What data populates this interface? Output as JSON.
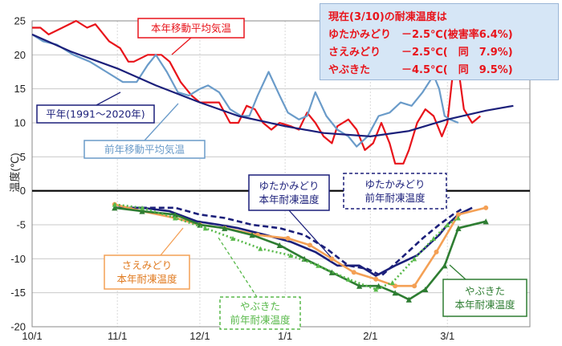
{
  "chart_data": {
    "type": "line",
    "title": "",
    "ylabel": "温度(℃)",
    "ylim": [
      -20,
      25
    ],
    "yticks": [
      -20,
      -15,
      -10,
      -5,
      0,
      5,
      10,
      15,
      20,
      25
    ],
    "xticks": [
      "10/1",
      "11/1",
      "12/1",
      "1/1",
      "2/1",
      "3/1"
    ],
    "x_date_range": [
      "10/1",
      "3/31"
    ],
    "grid": true,
    "series": [
      {
        "name": "本年移動平均気温",
        "color": "#e8141b",
        "style": "solid",
        "points": [
          [
            "10/1",
            24
          ],
          [
            "10/4",
            24
          ],
          [
            "10/7",
            23
          ],
          [
            "10/12",
            24
          ],
          [
            "10/17",
            25
          ],
          [
            "10/21",
            24
          ],
          [
            "10/24",
            24.5
          ],
          [
            "10/27",
            23
          ],
          [
            "10/29",
            22
          ],
          [
            "11/2",
            21
          ],
          [
            "11/5",
            19
          ],
          [
            "11/7",
            19
          ],
          [
            "11/12",
            20
          ],
          [
            "11/17",
            20
          ],
          [
            "11/20",
            19
          ],
          [
            "11/24",
            16
          ],
          [
            "11/28",
            14
          ],
          [
            "12/1",
            13
          ],
          [
            "12/5",
            13
          ],
          [
            "12/8",
            13
          ],
          [
            "12/12",
            10
          ],
          [
            "12/15",
            10
          ],
          [
            "12/18",
            12.5
          ],
          [
            "12/21",
            12
          ],
          [
            "12/24",
            10
          ],
          [
            "12/27",
            9
          ],
          [
            "12/30",
            10
          ],
          [
            "1/3",
            9.5
          ],
          [
            "1/6",
            9
          ],
          [
            "1/9",
            11.5
          ],
          [
            "1/12",
            10
          ],
          [
            "1/15",
            8
          ],
          [
            "1/18",
            7
          ],
          [
            "1/20",
            9.5
          ],
          [
            "1/24",
            10.5
          ],
          [
            "1/27",
            9
          ],
          [
            "1/30",
            6
          ],
          [
            "2/2",
            7
          ],
          [
            "2/5",
            10
          ],
          [
            "2/8",
            7
          ],
          [
            "2/10",
            4
          ],
          [
            "2/13",
            4
          ],
          [
            "2/15",
            6
          ],
          [
            "2/18",
            10
          ],
          [
            "2/21",
            12
          ],
          [
            "2/24",
            11
          ],
          [
            "2/27",
            8
          ],
          [
            "3/1",
            10
          ],
          [
            "3/4",
            21
          ],
          [
            "3/7",
            12
          ],
          [
            "3/10",
            10
          ],
          [
            "3/13",
            11
          ]
        ]
      },
      {
        "name": "前年移動平均気温",
        "color": "#6a9bc9",
        "style": "solid",
        "points": [
          [
            "10/1",
            23
          ],
          [
            "10/5",
            22
          ],
          [
            "10/10",
            21.5
          ],
          [
            "10/16",
            20
          ],
          [
            "10/22",
            19
          ],
          [
            "10/28",
            17.5
          ],
          [
            "11/3",
            16
          ],
          [
            "11/8",
            16
          ],
          [
            "11/12",
            18.5
          ],
          [
            "11/15",
            20
          ],
          [
            "11/19",
            17.5
          ],
          [
            "11/23",
            14.5
          ],
          [
            "11/27",
            14
          ],
          [
            "12/1",
            15
          ],
          [
            "12/4",
            15.5
          ],
          [
            "12/8",
            14.5
          ],
          [
            "12/12",
            12
          ],
          [
            "12/16",
            11
          ],
          [
            "12/19",
            11
          ],
          [
            "12/22",
            14
          ],
          [
            "12/26",
            17.5
          ],
          [
            "12/30",
            14
          ],
          [
            "1/2",
            11.5
          ],
          [
            "1/6",
            10.5
          ],
          [
            "1/9",
            11
          ],
          [
            "1/12",
            14.5
          ],
          [
            "1/16",
            11
          ],
          [
            "1/20",
            9
          ],
          [
            "1/24",
            8
          ],
          [
            "1/27",
            6.5
          ],
          [
            "1/31",
            8
          ],
          [
            "2/4",
            11
          ],
          [
            "2/8",
            11.5
          ],
          [
            "2/12",
            13
          ],
          [
            "2/16",
            12.5
          ],
          [
            "2/20",
            14.5
          ],
          [
            "2/24",
            17
          ],
          [
            "2/26",
            15
          ],
          [
            "2/28",
            11
          ],
          [
            "3/2",
            10.5
          ],
          [
            "3/5",
            10
          ]
        ]
      },
      {
        "name": "平年(1991～2020年)",
        "color": "#1b1f7a",
        "style": "solid",
        "points": [
          [
            "10/1",
            23
          ],
          [
            "10/15",
            20.5
          ],
          [
            "11/1",
            18
          ],
          [
            "11/15",
            15.5
          ],
          [
            "12/1",
            13
          ],
          [
            "12/15",
            11
          ],
          [
            "1/1",
            9.5
          ],
          [
            "1/15",
            8.5
          ],
          [
            "2/1",
            8
          ],
          [
            "2/15",
            8.8
          ],
          [
            "3/1",
            10.5
          ],
          [
            "3/15",
            11.8
          ],
          [
            "3/25",
            12.5
          ]
        ]
      },
      {
        "name": "ゆたかみどり 本年耐凍温度",
        "color": "#1b1f7a",
        "style": "solid",
        "points": [
          [
            "10/31",
            -2.5
          ],
          [
            "11/10",
            -2.5
          ],
          [
            "11/20",
            -3
          ],
          [
            "11/30",
            -4.5
          ],
          [
            "12/8",
            -5
          ],
          [
            "12/15",
            -5.5
          ],
          [
            "12/25",
            -6.5
          ],
          [
            "1/3",
            -7.5
          ],
          [
            "1/12",
            -9
          ],
          [
            "1/20",
            -11
          ],
          [
            "1/28",
            -11
          ],
          [
            "2/3",
            -12.5
          ],
          [
            "2/10",
            -11
          ],
          [
            "2/18",
            -9.5
          ],
          [
            "2/26",
            -6.5
          ],
          [
            "3/1",
            -5
          ],
          [
            "3/5",
            -3.5
          ],
          [
            "3/10",
            -2.5
          ]
        ]
      },
      {
        "name": "ゆたかみどり 前年耐凍温度",
        "color": "#1b1f7a",
        "style": "dashed",
        "points": [
          [
            "10/31",
            -2.5
          ],
          [
            "11/12",
            -2.5
          ],
          [
            "11/22",
            -2.5
          ],
          [
            "12/1",
            -3.5
          ],
          [
            "12/10",
            -4
          ],
          [
            "12/20",
            -5
          ],
          [
            "12/30",
            -5.5
          ],
          [
            "1/8",
            -6.5
          ],
          [
            "1/16",
            -8.5
          ],
          [
            "1/24",
            -11
          ],
          [
            "1/31",
            -11.5
          ],
          [
            "2/5",
            -12.5
          ],
          [
            "2/12",
            -10
          ],
          [
            "2/20",
            -7
          ],
          [
            "2/26",
            -5
          ],
          [
            "3/3",
            -3.5
          ],
          [
            "3/7",
            -2.5
          ]
        ]
      },
      {
        "name": "さえみどり 本年耐凍温度",
        "color": "#f4a055",
        "style": "solid",
        "points": [
          [
            "10/31",
            -2
          ],
          [
            "11/10",
            -3
          ],
          [
            "11/22",
            -4
          ],
          [
            "12/1",
            -5
          ],
          [
            "12/10",
            -5.5
          ],
          [
            "12/22",
            -6.5
          ],
          [
            "1/2",
            -7
          ],
          [
            "1/10",
            -8
          ],
          [
            "1/18",
            -10
          ],
          [
            "1/26",
            -12
          ],
          [
            "2/3",
            -13
          ],
          [
            "2/10",
            -14
          ],
          [
            "2/17",
            -14
          ],
          [
            "2/25",
            -9
          ],
          [
            "3/5",
            -3.5
          ],
          [
            "3/15",
            -2.5
          ]
        ]
      },
      {
        "name": "やぶきた 本年耐凍温度",
        "color": "#2e7d32",
        "style": "solid",
        "points": [
          [
            "10/31",
            -2.5
          ],
          [
            "11/10",
            -3
          ],
          [
            "11/22",
            -3.5
          ],
          [
            "12/1",
            -5
          ],
          [
            "12/10",
            -5.5
          ],
          [
            "12/20",
            -6.5
          ],
          [
            "12/30",
            -8
          ],
          [
            "1/8",
            -10
          ],
          [
            "1/18",
            -12
          ],
          [
            "1/28",
            -14
          ],
          [
            "2/4",
            -14
          ],
          [
            "2/10",
            -15
          ],
          [
            "2/15",
            -16
          ],
          [
            "2/21",
            -14.5
          ],
          [
            "2/28",
            -11
          ],
          [
            "3/5",
            -5.5
          ],
          [
            "3/15",
            -4.5
          ]
        ]
      },
      {
        "name": "やぶきた 前年耐凍温度",
        "color": "#58b94a",
        "style": "dotted",
        "points": [
          [
            "10/31",
            -2
          ],
          [
            "11/10",
            -2.5
          ],
          [
            "11/22",
            -4
          ],
          [
            "12/3",
            -5.5
          ],
          [
            "12/13",
            -7
          ],
          [
            "12/23",
            -8.5
          ],
          [
            "1/3",
            -9.5
          ],
          [
            "1/13",
            -11
          ],
          [
            "1/24",
            -13
          ],
          [
            "2/3",
            -14.5
          ],
          [
            "2/9",
            -13.5
          ],
          [
            "2/17",
            -10
          ],
          [
            "2/24",
            -7
          ],
          [
            "3/1",
            -5
          ],
          [
            "3/5",
            -4
          ]
        ]
      }
    ],
    "annotations": [
      {
        "text": "本年移動平均気温",
        "color": "#e8141b",
        "box": "solid"
      },
      {
        "text": "平年(1991～2020年)",
        "color": "#1b1f7a",
        "box": "solid"
      },
      {
        "text": "前年移動平均気温",
        "color": "#6a9bc9",
        "box": "solid"
      },
      {
        "text": "ゆたかみどり\n本年耐凍温度",
        "color": "#1b1f7a",
        "box": "solid"
      },
      {
        "text": "ゆたかみどり\n前年耐凍温度",
        "color": "#1b1f7a",
        "box": "dashed"
      },
      {
        "text": "さえみどり\n本年耐凍温度",
        "color": "#f4a055",
        "box": "solid"
      },
      {
        "text": "やぶきた\n前年耐凍温度",
        "color": "#58b94a",
        "box": "dashed"
      },
      {
        "text": "やぶきた\n本年耐凍温度",
        "color": "#2e7d32",
        "box": "solid"
      }
    ]
  },
  "info_box": {
    "title": "現在(3/10)の耐凍温度は",
    "rows": [
      "ゆたかみどり　－2.5℃(被害率6.4%)",
      "さえみどり　　－2.5℃(　同　7.9%)",
      "やぶきた　　　－4.5℃(　同　9.5%)"
    ]
  }
}
